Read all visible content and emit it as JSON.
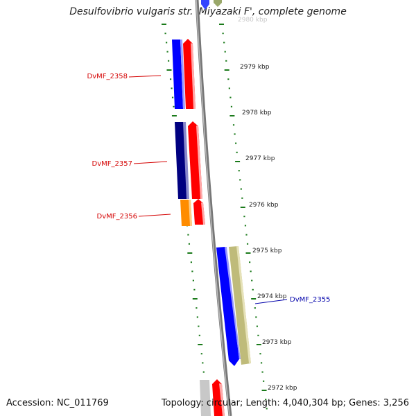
{
  "title": "Desulfovibrio vulgaris str. 'Miyazaki F', complete genome",
  "footer": {
    "accession": "Accession: NC_011769",
    "stats": "Topology: circular; Length: 4,040,304 bp; Genes: 3,256"
  },
  "colors": {
    "backbone": "#8c8c8c",
    "ticks": "#1a7a1a",
    "gene_label_left": "#d40000",
    "gene_label_right": "#0000aa"
  },
  "scale_labels": [
    "2980 kbp",
    "2979 kbp",
    "2978 kbp",
    "2977 kbp",
    "2976 kbp",
    "2975 kbp",
    "2974 kbp",
    "2973 kbp",
    "2972 kbp"
  ],
  "genes": [
    {
      "name": "DvMF_2358",
      "side": "left",
      "color": "#d40000"
    },
    {
      "name": "DvMF_2357",
      "side": "left",
      "color": "#d40000"
    },
    {
      "name": "DvMF_2356",
      "side": "left",
      "color": "#d40000"
    },
    {
      "name": "DvMF_2355",
      "side": "right",
      "color": "#0000aa"
    }
  ]
}
